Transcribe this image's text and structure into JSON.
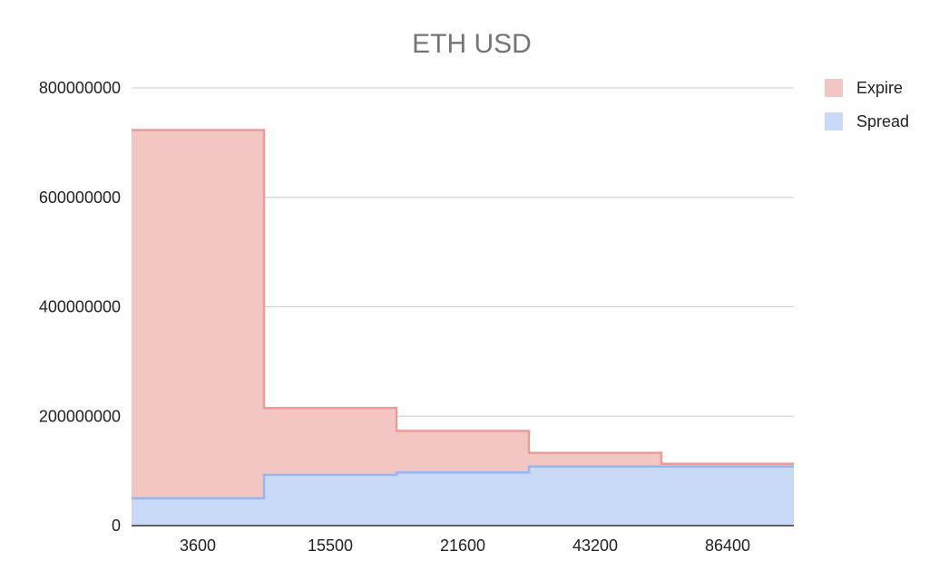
{
  "chart_data": {
    "type": "area",
    "subtype": "stepped-stacked",
    "title": "ETH USD",
    "xlabel": "",
    "ylabel": "",
    "categories": [
      "3600",
      "15500",
      "21600",
      "43200",
      "86400"
    ],
    "series": [
      {
        "name": "Spread",
        "values": [
          50000000,
          93000000,
          97000000,
          108000000,
          108000000
        ]
      },
      {
        "name": "Expire",
        "values": [
          673000000,
          122000000,
          76000000,
          25000000,
          5000000
        ]
      }
    ],
    "ylim": [
      0,
      800000000
    ],
    "yticks": [
      "0",
      "200000000",
      "400000000",
      "600000000",
      "800000000"
    ],
    "grid": true,
    "legend": "right",
    "colors": {
      "Expire_fill": "#f1c6c3",
      "Expire_line": "#ea9c96",
      "Spread_fill": "#c8d9f6",
      "Spread_line": "#98b5ef",
      "grid": "#cccccc",
      "axis": "#333333"
    }
  }
}
